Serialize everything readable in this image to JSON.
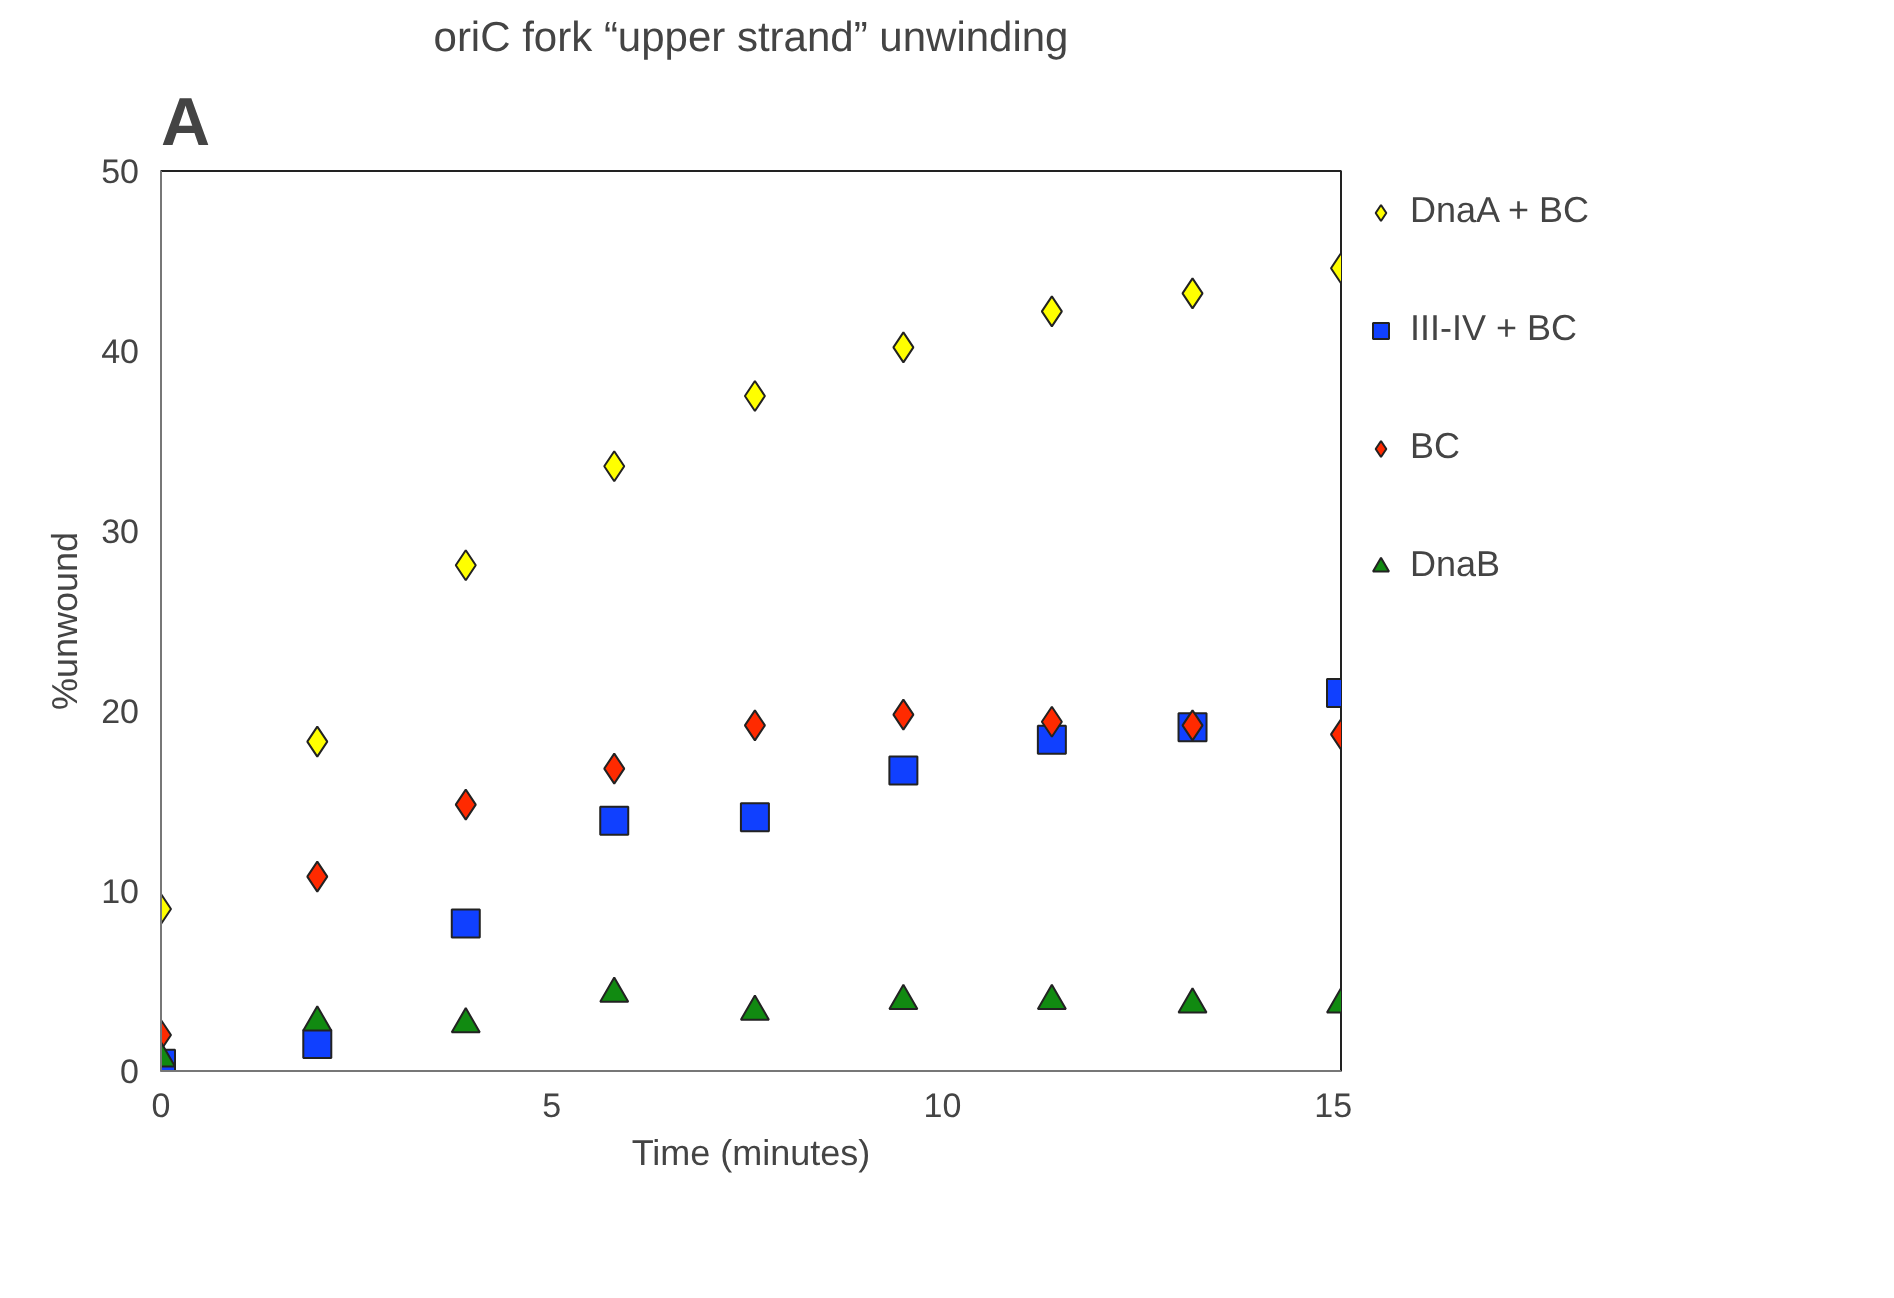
{
  "chart_data": {
    "type": "scatter",
    "title": "oriC fork “upper strand” unwinding",
    "xlabel": "Time (minutes)",
    "ylabel": "%unwound",
    "annotations": [
      "A"
    ],
    "x": [
      0,
      2,
      3.9,
      5.8,
      7.6,
      9.5,
      11.4,
      13.2,
      15.1
    ],
    "xlim": [
      0,
      15.1
    ],
    "xticks": [
      0,
      5,
      10,
      15
    ],
    "ylim": [
      0,
      50
    ],
    "yticks": [
      0,
      10,
      20,
      30,
      40,
      50
    ],
    "grid": false,
    "legend": "right",
    "series": [
      {
        "name": "DnaA + BC",
        "color": "#ffff00",
        "marker": "diamond",
        "values": [
          9,
          18.3,
          28.1,
          33.6,
          37.5,
          40.2,
          42.2,
          43.2,
          44.6
        ]
      },
      {
        "name": "III-IV + BC",
        "color": "#1040ff",
        "marker": "square",
        "values": [
          0.4,
          1.5,
          8.2,
          13.9,
          14.1,
          16.7,
          18.4,
          19.1,
          21.0
        ]
      },
      {
        "name": "BC",
        "color": "#ff2a00",
        "marker": "diamond",
        "values": [
          2.0,
          10.8,
          14.8,
          16.8,
          19.2,
          19.8,
          19.4,
          19.2,
          18.7
        ]
      },
      {
        "name": "DnaB",
        "color": "#118a11",
        "marker": "triangle",
        "values": [
          0.7,
          2.7,
          2.6,
          4.3,
          3.3,
          3.9,
          3.9,
          3.7,
          3.7
        ]
      }
    ]
  }
}
